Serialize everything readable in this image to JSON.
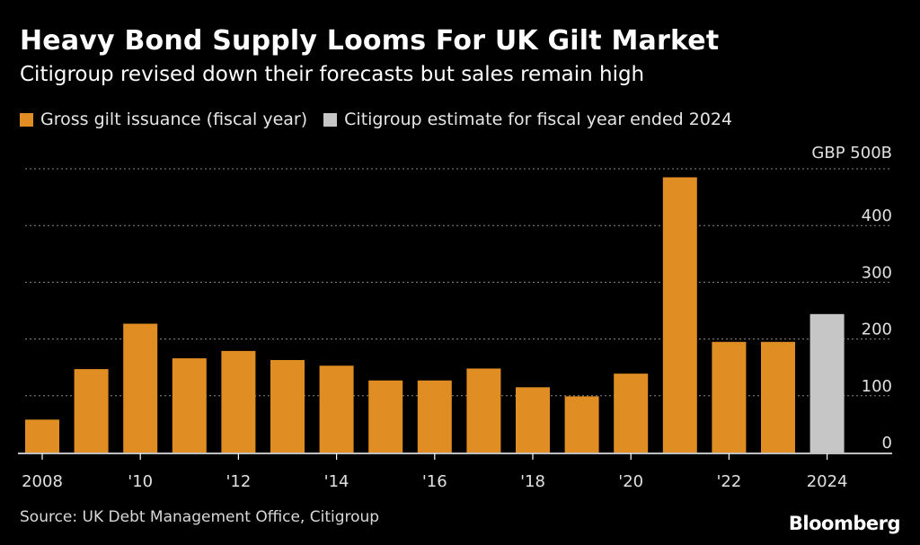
{
  "header": {
    "title": "Heavy Bond Supply Looms For UK Gilt Market",
    "subtitle": "Citigroup revised down their forecasts but sales remain high"
  },
  "legend": {
    "items": [
      {
        "label": "Gross gilt issuance (fiscal year)",
        "color": "#E08E23"
      },
      {
        "label": "Citigroup estimate for fiscal year ended 2024",
        "color": "#C6C6C6"
      }
    ]
  },
  "footer": {
    "source": "Source: UK Debt Management Office, Citigroup",
    "brand": "Bloomberg"
  },
  "chart_data": {
    "type": "bar",
    "title": "Heavy Bond Supply Looms For UK Gilt Market",
    "subtitle": "Citigroup revised down their forecasts but sales remain high",
    "xlabel": "",
    "ylabel": "GBP 500B",
    "ylim": [
      0,
      500
    ],
    "yticks": [
      0,
      100,
      200,
      300,
      400,
      500
    ],
    "ytick_labels": [
      "0",
      "100",
      "200",
      "300",
      "400",
      "GBP 500B"
    ],
    "grid": true,
    "categories": [
      2008,
      2009,
      2010,
      2011,
      2012,
      2013,
      2014,
      2015,
      2016,
      2017,
      2018,
      2019,
      2020,
      2021,
      2022,
      2023,
      2024
    ],
    "xtick_labels": [
      {
        "category": 2008,
        "label": "2008"
      },
      {
        "category": 2010,
        "label": "'10"
      },
      {
        "category": 2012,
        "label": "'12"
      },
      {
        "category": 2014,
        "label": "'14"
      },
      {
        "category": 2016,
        "label": "'16"
      },
      {
        "category": 2018,
        "label": "'18"
      },
      {
        "category": 2020,
        "label": "'20"
      },
      {
        "category": 2022,
        "label": "'22"
      },
      {
        "category": 2024,
        "label": "2024"
      }
    ],
    "series": [
      {
        "name": "Gross gilt issuance (fiscal year)",
        "color": "#E08E23",
        "values": [
          58,
          147,
          227,
          166,
          179,
          163,
          153,
          127,
          127,
          148,
          115,
          99,
          139,
          485,
          195,
          195,
          null
        ]
      },
      {
        "name": "Citigroup estimate for fiscal year ended 2024",
        "color": "#C6C6C6",
        "values": [
          null,
          null,
          null,
          null,
          null,
          null,
          null,
          null,
          null,
          null,
          null,
          null,
          null,
          null,
          null,
          null,
          244
        ]
      }
    ]
  }
}
